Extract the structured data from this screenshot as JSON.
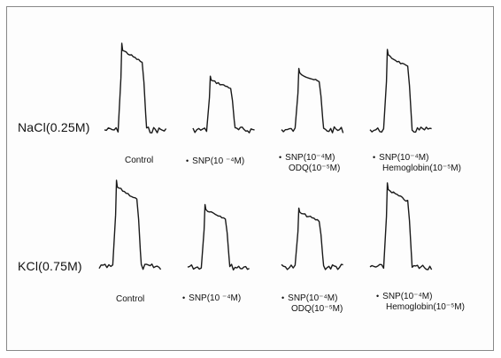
{
  "chart_data": {
    "type": "line",
    "rows": [
      {
        "label": "NaCl(0.25M)",
        "panels": [
          {
            "caption": [
              "Control"
            ],
            "bullet": false
          },
          {
            "caption": [
              "SNP(10 ⁻⁴M)"
            ],
            "bullet": true
          },
          {
            "caption": [
              "SNP(10⁻⁴M)",
              "ODQ(10⁻⁵M)"
            ],
            "bullet": true
          },
          {
            "caption": [
              "SNP(10⁻⁴M)",
              "Hemoglobin(10⁻⁵M)"
            ],
            "bullet": true
          }
        ]
      },
      {
        "label": "KCl(0.75M)",
        "panels": [
          {
            "caption": [
              "Control"
            ],
            "bullet": false
          },
          {
            "caption": [
              "SNP(10 ⁻⁴M)"
            ],
            "bullet": true
          },
          {
            "caption": [
              "SNP(10⁻⁴M)",
              "ODQ(10⁻⁵M)"
            ],
            "bullet": true
          },
          {
            "caption": [
              "SNP(10⁻⁴M)",
              "Hemoglobin(10⁻⁵M)"
            ],
            "bullet": true
          }
        ]
      }
    ],
    "relative_peak_amplitude": [
      [
        1.0,
        0.62,
        0.71,
        0.93
      ],
      [
        1.0,
        0.72,
        0.68,
        0.97
      ]
    ],
    "colors": {
      "trace": "#1a1a1a",
      "text": "#111111",
      "border": "#888888"
    }
  }
}
